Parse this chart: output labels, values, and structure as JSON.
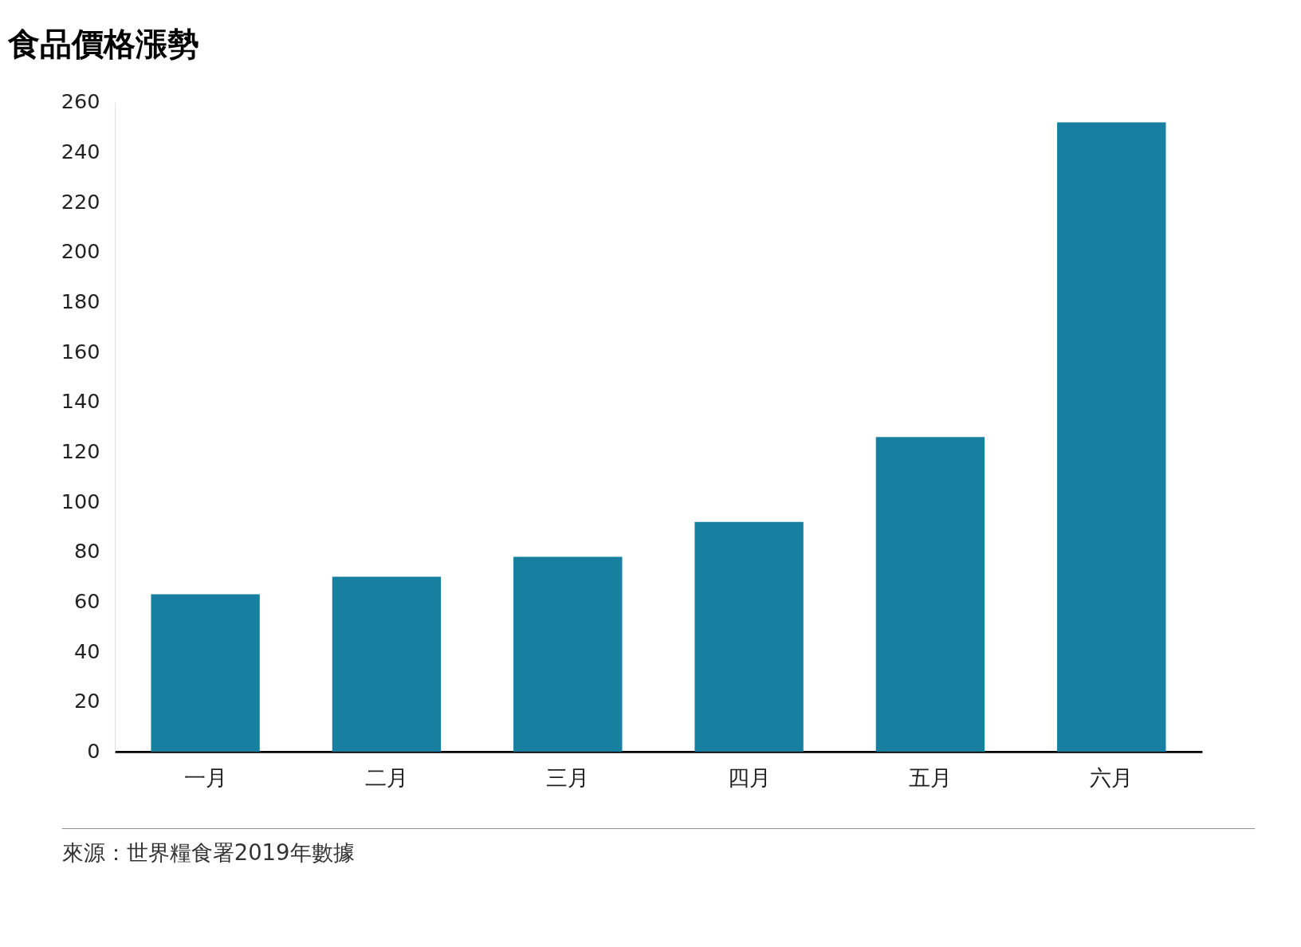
{
  "chart_data": {
    "type": "bar",
    "title": "食品價格漲勢",
    "categories": [
      "一月",
      "二月",
      "三月",
      "四月",
      "五月",
      "六月"
    ],
    "values": [
      63,
      70,
      78,
      92,
      126,
      252
    ],
    "color": "#1780a1",
    "ylim": [
      0,
      260
    ],
    "yticks": [
      0,
      20,
      40,
      60,
      80,
      100,
      120,
      140,
      160,
      180,
      200,
      220,
      240,
      260
    ],
    "grid": false,
    "annotations": [
      "來源：世界糧食署2019年數據"
    ]
  }
}
